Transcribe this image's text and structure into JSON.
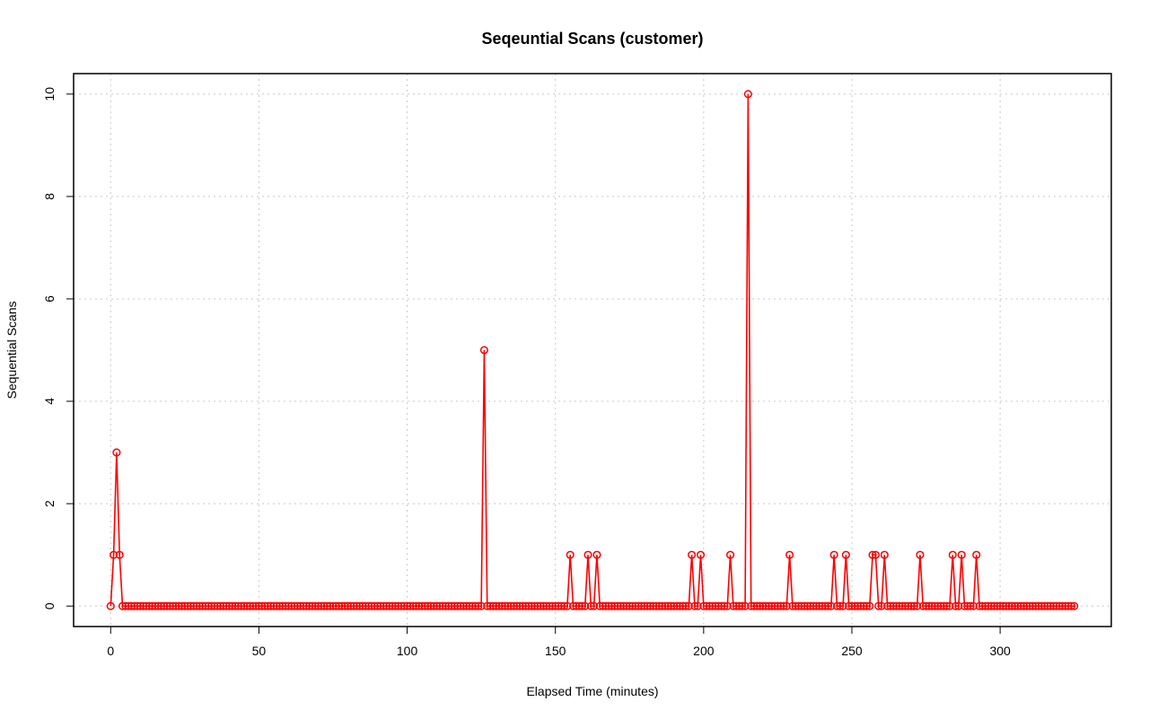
{
  "colors": {
    "series": "#ff0000",
    "grid": "#c8c8c8",
    "frame": "#000000"
  },
  "chart_data": {
    "type": "line",
    "title": "Seqeuntial Scans (customer)",
    "xlabel": "Elapsed Time (minutes)",
    "ylabel": "Sequential Scans",
    "xlim": [
      -12.5,
      337.5
    ],
    "ylim": [
      -0.4,
      10.4
    ],
    "xticks": [
      0,
      50,
      100,
      150,
      200,
      250,
      300
    ],
    "xtick_labels": [
      "0",
      "50",
      "100",
      "150",
      "200",
      "250",
      "300"
    ],
    "yticks": [
      0,
      2,
      4,
      6,
      8,
      10
    ],
    "ytick_labels": [
      "0",
      "2",
      "4",
      "6",
      "8",
      "10"
    ],
    "grid": true,
    "x_start": 0,
    "x_end": 325,
    "x_step": 1,
    "baseline_value": 0,
    "series": [
      {
        "name": "",
        "color": "#ff0000",
        "marker": "open-circle",
        "nonzero_points": [
          {
            "x": 1,
            "y": 1
          },
          {
            "x": 2,
            "y": 3
          },
          {
            "x": 3,
            "y": 1
          },
          {
            "x": 126,
            "y": 5
          },
          {
            "x": 155,
            "y": 1
          },
          {
            "x": 161,
            "y": 1
          },
          {
            "x": 164,
            "y": 1
          },
          {
            "x": 196,
            "y": 1
          },
          {
            "x": 199,
            "y": 1
          },
          {
            "x": 209,
            "y": 1
          },
          {
            "x": 215,
            "y": 10
          },
          {
            "x": 229,
            "y": 1
          },
          {
            "x": 244,
            "y": 1
          },
          {
            "x": 248,
            "y": 1
          },
          {
            "x": 257,
            "y": 1
          },
          {
            "x": 258,
            "y": 1
          },
          {
            "x": 261,
            "y": 1
          },
          {
            "x": 273,
            "y": 1
          },
          {
            "x": 284,
            "y": 1
          },
          {
            "x": 287,
            "y": 1
          },
          {
            "x": 292,
            "y": 1
          }
        ]
      }
    ]
  }
}
